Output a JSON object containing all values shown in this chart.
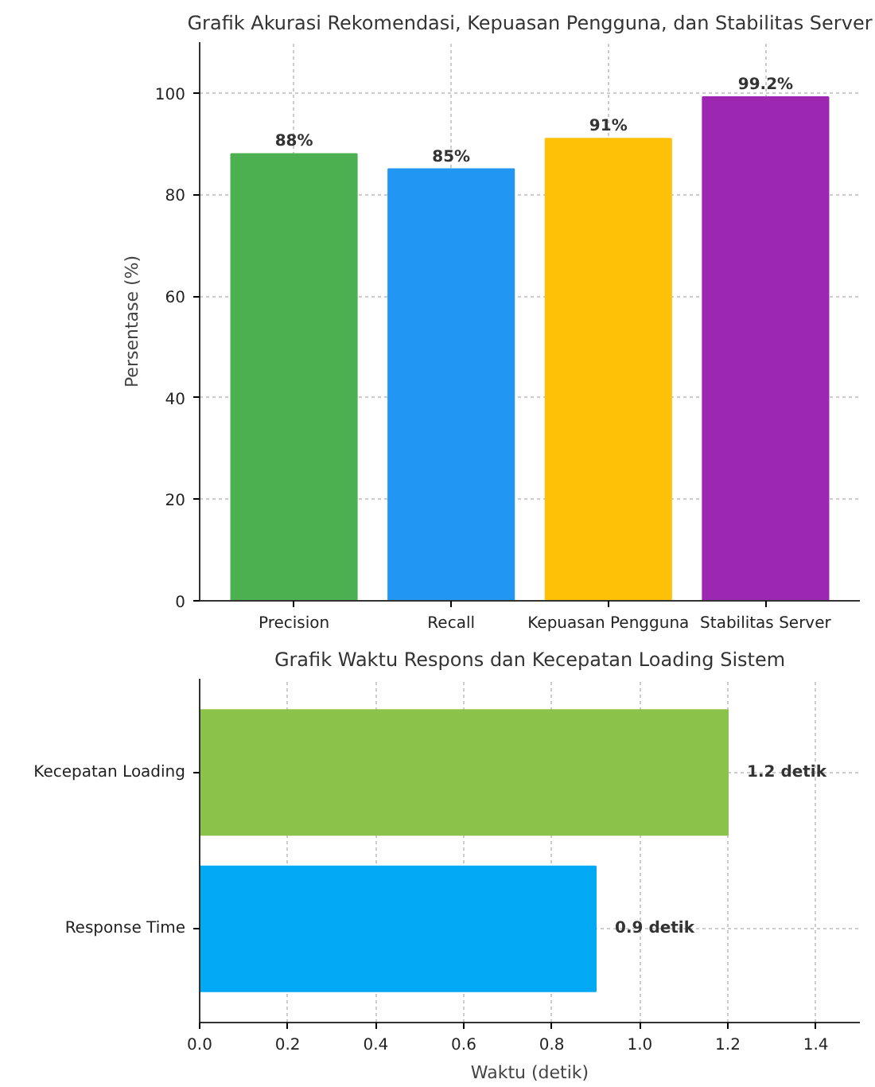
{
  "chart_data": [
    {
      "type": "bar",
      "title": "Grafik Akurasi Rekomendasi, Kepuasan Pengguna, dan Stabilitas Server",
      "ylabel": "Persentase (%)",
      "categories": [
        "Precision",
        "Recall",
        "Kepuasan Pengguna",
        "Stabilitas Server"
      ],
      "values": [
        88,
        85,
        91,
        99.2
      ],
      "colors": [
        "#4caf50",
        "#2196f3",
        "#ffc107",
        "#9c27b0"
      ],
      "value_labels": [
        "88%",
        "85%",
        "91%",
        "99.2%"
      ],
      "ylim": [
        0,
        110
      ],
      "yticks": [
        0,
        20,
        40,
        60,
        80,
        100
      ],
      "grid": true
    },
    {
      "type": "bar",
      "orientation": "horizontal",
      "title": "Grafik Waktu Respons dan Kecepatan Loading Sistem",
      "xlabel": "Waktu (detik)",
      "categories": [
        "Kecepatan Loading",
        "Response Time"
      ],
      "values": [
        1.2,
        0.9
      ],
      "colors": [
        "#8bc34a",
        "#03a9f4"
      ],
      "value_labels": [
        "1.2 detik",
        "0.9 detik"
      ],
      "xlim": [
        0,
        1.5
      ],
      "xticks": [
        {
          "value": 0,
          "label": "0.0"
        },
        0.2,
        0.4,
        0.6,
        0.8,
        {
          "value": 1,
          "label": "1.0"
        },
        1.2,
        1.4
      ],
      "grid": true
    }
  ]
}
